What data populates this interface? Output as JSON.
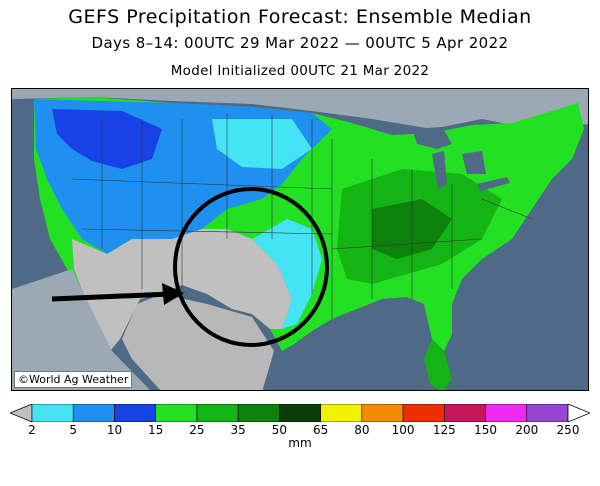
{
  "title": "GEFS Precipitation Forecast: Ensemble Median",
  "subtitle": "Days 8–14: 00UTC 29 Mar 2022 — 00UTC 5 Apr 2022",
  "initialized": "Model Initialized 00UTC 21 Mar 2022",
  "credit": "©World Ag Weather",
  "legend": {
    "unit": "mm",
    "ticks": [
      "2",
      "5",
      "10",
      "15",
      "25",
      "35",
      "50",
      "65",
      "80",
      "100",
      "125",
      "150",
      "200",
      "250"
    ],
    "colors": [
      "#c0c0c0",
      "#44e4f4",
      "#1f90f0",
      "#1642e6",
      "#22e022",
      "#14b414",
      "#0c820c",
      "#0a3d0a",
      "#f0f000",
      "#f08c00",
      "#f02c00",
      "#c8145a",
      "#f028f0",
      "#9646d2",
      "#ffffff"
    ]
  },
  "colors": {
    "ocean": "#4e6a86",
    "dry_gray": "#c0c0c0",
    "annotation": "#000000"
  },
  "annotations": [
    "circle",
    "arrow"
  ]
}
